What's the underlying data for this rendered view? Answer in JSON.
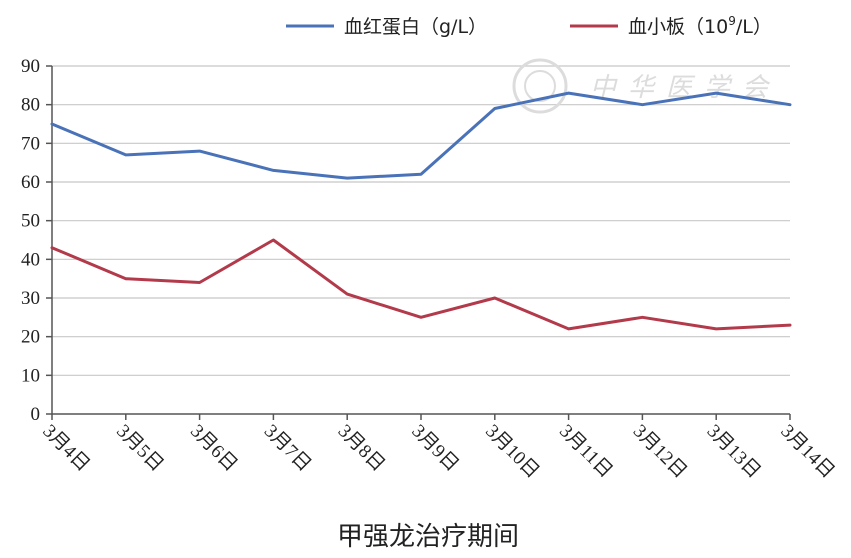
{
  "chart_data": {
    "type": "line",
    "categories": [
      "3月4日",
      "3月5日",
      "3月6日",
      "3月7日",
      "3月8日",
      "3月9日",
      "3月10日",
      "3月11日",
      "3月12日",
      "3月13日",
      "3月14日"
    ],
    "series": [
      {
        "name": "血红蛋白（g/L）",
        "name_main": "血红蛋白（g/L）",
        "color": "#4a72b8",
        "values": [
          75,
          67,
          68,
          63,
          61,
          62,
          79,
          83,
          80,
          83,
          80
        ]
      },
      {
        "name": "血小板（10⁹/L）",
        "name_main": "血小板（10",
        "name_sup": "9",
        "name_tail": "/L）",
        "color": "#b23a4a",
        "values": [
          43,
          35,
          34,
          45,
          31,
          25,
          30,
          22,
          25,
          22,
          23
        ]
      }
    ],
    "yticks": [
      0,
      10,
      20,
      30,
      40,
      50,
      60,
      70,
      80,
      90
    ],
    "ylim": [
      0,
      90
    ],
    "grid": true,
    "legend_position": "top-right",
    "title": "",
    "xlabel": "甲强龙治疗期间",
    "ylabel": ""
  },
  "watermark": {
    "text": "中华医学会"
  }
}
